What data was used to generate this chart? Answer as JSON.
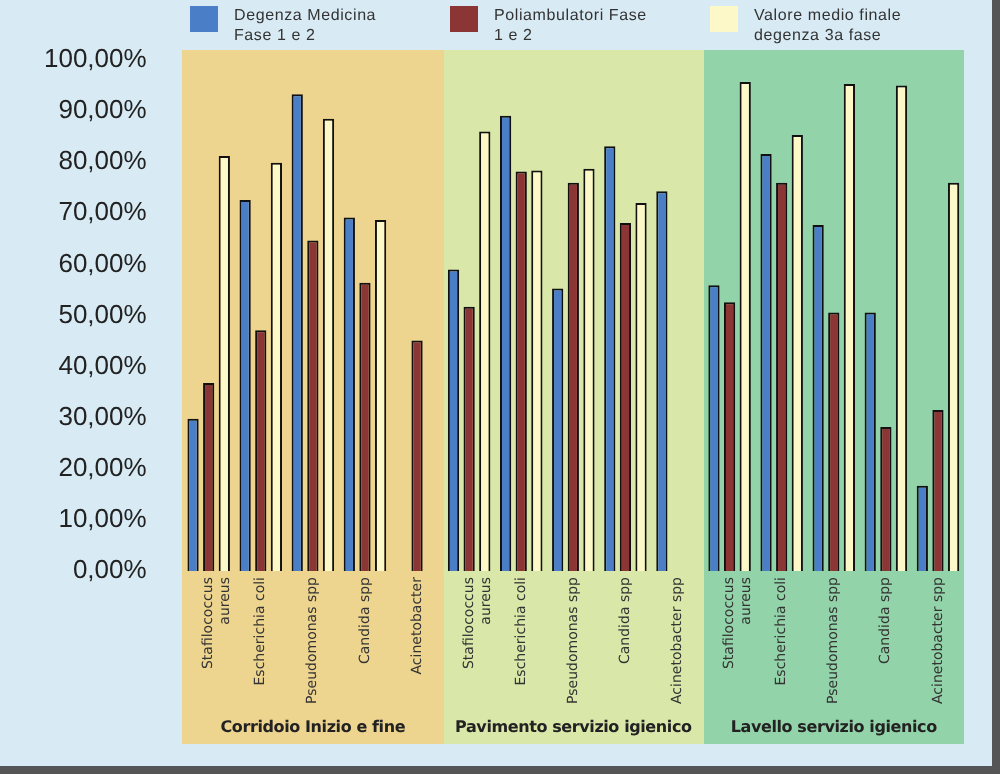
{
  "chart_data": {
    "type": "bar",
    "categories": [
      "Stafilococcus aureus",
      "Escherichia coli",
      "Pseudomonas spp",
      "Candida spp",
      "Acinetobacter",
      "Stafilococcus aureus",
      "Escherichia coli",
      "Pseudomonas spp",
      "Candida spp",
      "Acinetobacter spp",
      "Stafilococcus aureus",
      "Escherichia coli",
      "Pseudomonas spp",
      "Candida spp",
      "Acinetobacter spp"
    ],
    "series": [
      {
        "name": "Degenza Medicina Fase 1 e 2",
        "color": "#4a7fc8",
        "values": [
          29.8,
          72.6,
          93.3,
          69.2,
          null,
          59.0,
          89.1,
          55.3,
          83.1,
          74.3,
          55.9,
          81.6,
          67.7,
          50.6,
          16.7
        ]
      },
      {
        "name": "Poliambulatori Fase 1 e 2",
        "color": "#8b3535",
        "values": [
          36.8,
          47.1,
          64.7,
          56.4,
          45.1,
          51.7,
          78.2,
          76.0,
          68.1,
          null,
          52.6,
          76.0,
          50.6,
          28.2,
          31.5
        ]
      },
      {
        "name": "Valore medio finale degenza 3a fase",
        "color": "#fdf8c8",
        "values": [
          81.2,
          79.9,
          88.5,
          68.7,
          null,
          86.0,
          78.4,
          78.7,
          72.0,
          null,
          95.7,
          85.3,
          95.3,
          95.0,
          76.0
        ]
      }
    ],
    "ylim": [
      0,
      100
    ],
    "yticks": [
      {
        "value": 0,
        "label": "0,00%"
      },
      {
        "value": 10,
        "label": "10,00%"
      },
      {
        "value": 20,
        "label": "20,00%"
      },
      {
        "value": 30,
        "label": "30,00%"
      },
      {
        "value": 40,
        "label": "40,00%"
      },
      {
        "value": 50,
        "label": "50,00%"
      },
      {
        "value": 60,
        "label": "60,00%"
      },
      {
        "value": 70,
        "label": "70,00%"
      },
      {
        "value": 80,
        "label": "80,00%"
      },
      {
        "value": 90,
        "label": "90,00%"
      },
      {
        "value": 100,
        "label": "100,00%"
      }
    ],
    "annotations": [
      "Corridoio Inizio e fine",
      "Pavimento servizio igienico",
      "Lavello servizio igienico"
    ],
    "grid": false,
    "legend": "top"
  }
}
